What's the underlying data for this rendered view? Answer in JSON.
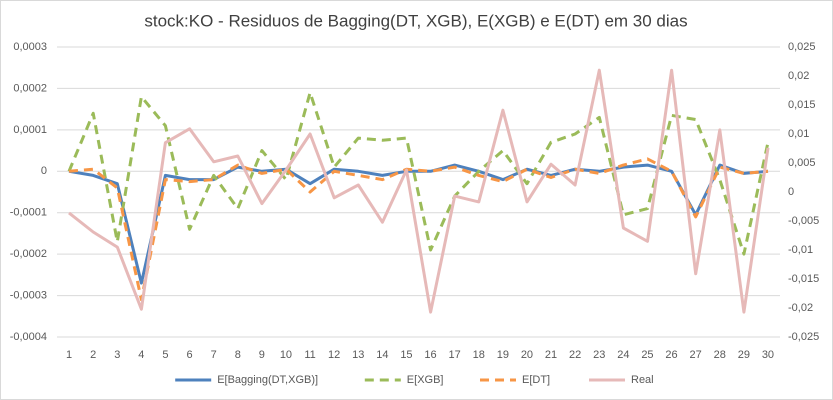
{
  "chart_data": {
    "type": "line",
    "title": "stock:KO - Residuos de Bagging(DT, XGB), E(XGB) e E(DT) em 30 dias",
    "categories": [
      1,
      2,
      3,
      4,
      5,
      6,
      7,
      8,
      9,
      10,
      11,
      12,
      13,
      14,
      15,
      16,
      17,
      18,
      19,
      20,
      21,
      22,
      23,
      24,
      25,
      26,
      27,
      28,
      29,
      30
    ],
    "ylim": [
      -0.0004,
      0.0003
    ],
    "yticks": [
      {
        "value": -0.0004,
        "label": "-0,0004"
      },
      {
        "value": -0.0003,
        "label": "-0,0003"
      },
      {
        "value": -0.0002,
        "label": "-0,0002"
      },
      {
        "value": -0.0001,
        "label": "-0,0001"
      },
      0,
      {
        "value": 0.0001,
        "label": "0,0001"
      },
      {
        "value": 0.0002,
        "label": "0,0002"
      },
      {
        "value": 0.0003,
        "label": "0,0003"
      }
    ],
    "y2lim": [
      -0.025,
      0.025
    ],
    "y2ticks": [
      {
        "value": -0.025,
        "label": "-0,025"
      },
      {
        "value": -0.02,
        "label": "-0,02"
      },
      {
        "value": -0.015,
        "label": "-0,015"
      },
      {
        "value": -0.01,
        "label": "-0,01"
      },
      {
        "value": -0.005,
        "label": "-0,005"
      },
      0,
      {
        "value": 0.005,
        "label": "0,005"
      },
      {
        "value": 0.01,
        "label": "0,01"
      },
      {
        "value": 0.015,
        "label": "0,015"
      },
      {
        "value": 0.02,
        "label": "0,02"
      },
      {
        "value": 0.025,
        "label": "0,025"
      }
    ],
    "grid": true,
    "legend": "bottom",
    "series": [
      {
        "name": "E[Bagging(DT,XGB)]",
        "color": "#4e81bd",
        "dashed": false,
        "values": [
          0,
          -1e-05,
          -3e-05,
          -0.00027,
          -1e-05,
          -2e-05,
          -2e-05,
          1e-05,
          0,
          5e-06,
          -3e-05,
          5e-06,
          0,
          -1e-05,
          0,
          0,
          1.5e-05,
          0,
          -2e-05,
          5e-06,
          -1e-05,
          5e-06,
          0,
          1e-05,
          1.5e-05,
          0,
          -0.000105,
          1.5e-05,
          -5e-06,
          0
        ]
      },
      {
        "name": "E[XGB]",
        "color": "#9bbb59",
        "dashed": true,
        "values": [
          0,
          0.00014,
          -0.00017,
          0.00018,
          0.00011,
          -0.00014,
          -1e-05,
          -9e-05,
          5e-05,
          -2e-05,
          0.00019,
          1e-05,
          8e-05,
          7.5e-05,
          8e-05,
          -0.00019,
          -6e-05,
          0,
          5e-05,
          -3e-05,
          7e-05,
          9e-05,
          0.00013,
          -0.000105,
          -9e-05,
          0.000135,
          0.000125,
          -2e-05,
          -0.0002,
          7e-05
        ]
      },
      {
        "name": "E[DT]",
        "color": "#f79646",
        "dashed": true,
        "values": [
          0,
          5e-06,
          -4e-05,
          -0.00031,
          -2e-05,
          -2.5e-05,
          -2e-05,
          1.5e-05,
          -5e-06,
          5e-06,
          -5e-05,
          0,
          -1e-05,
          -2e-05,
          5e-06,
          0,
          1e-05,
          -1e-05,
          -2.5e-05,
          5e-06,
          -1.5e-05,
          5e-06,
          -5e-06,
          1.5e-05,
          3e-05,
          0,
          -0.00011,
          1e-05,
          -5e-06,
          0
        ]
      },
      {
        "name": "Real",
        "color": "#e6b9b8",
        "dashed": false,
        "axis": "y2",
        "values": [
          -0.0036,
          -0.0069,
          -0.0095,
          -0.0202,
          0.0085,
          0.0109,
          0.0052,
          0.0062,
          -0.002,
          0.0038,
          0.01,
          -0.001,
          0.0012,
          -0.0052,
          0.0038,
          -0.0207,
          -0.0007,
          -0.0017,
          0.0141,
          -0.0017,
          0.0048,
          0.0012,
          0.021,
          -0.0062,
          -0.0085,
          0.021,
          -0.0141,
          0.0107,
          -0.0207,
          0.0076
        ]
      }
    ]
  }
}
